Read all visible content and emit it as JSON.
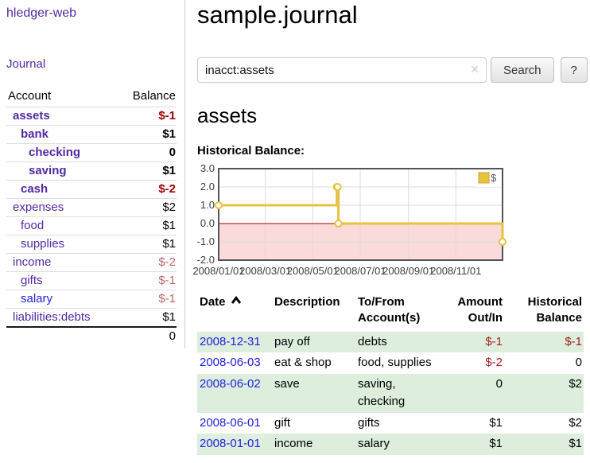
{
  "app": {
    "title": "hledger-web"
  },
  "sidebar": {
    "journal_label": "Journal",
    "accounts": {
      "account_header": "Account",
      "balance_header": "Balance",
      "rows": [
        {
          "name": "assets",
          "balance": "$-1",
          "depth": 0,
          "selected": true,
          "link": "purple",
          "tone": "neg"
        },
        {
          "name": "bank",
          "balance": "$1",
          "depth": 1,
          "selected": true,
          "link": "purple",
          "tone": "pos"
        },
        {
          "name": "checking",
          "balance": "0",
          "depth": 2,
          "selected": true,
          "link": "purple",
          "tone": "pos"
        },
        {
          "name": "saving",
          "balance": "$1",
          "depth": 2,
          "selected": true,
          "link": "purple",
          "tone": "pos"
        },
        {
          "name": "cash",
          "balance": "$-2",
          "depth": 1,
          "selected": true,
          "link": "purple",
          "tone": "neg"
        },
        {
          "name": "expenses",
          "balance": "$2",
          "depth": 0,
          "selected": false,
          "link": "purple",
          "tone": "pos"
        },
        {
          "name": "food",
          "balance": "$1",
          "depth": 1,
          "selected": false,
          "link": "purple",
          "tone": "pos"
        },
        {
          "name": "supplies",
          "balance": "$1",
          "depth": 1,
          "selected": false,
          "link": "purple",
          "tone": "pos"
        },
        {
          "name": "income",
          "balance": "$-2",
          "depth": 0,
          "selected": false,
          "link": "purple",
          "tone": "neg-muted"
        },
        {
          "name": "gifts",
          "balance": "$-1",
          "depth": 1,
          "selected": false,
          "link": "purple",
          "tone": "neg-muted"
        },
        {
          "name": "salary",
          "balance": "$-1",
          "depth": 1,
          "selected": false,
          "link": "blue",
          "tone": "neg-muted"
        },
        {
          "name": "liabilities:debts",
          "balance": "$1",
          "depth": 0,
          "selected": false,
          "link": "purple",
          "tone": "pos"
        }
      ],
      "total": "0"
    }
  },
  "main": {
    "title": "sample.journal",
    "search": {
      "value": "inacct:assets",
      "clear_glyph": "✕",
      "button_label": "Search",
      "help_label": "?"
    },
    "account_heading": "assets",
    "chart_label": "Historical Balance:"
  },
  "chart_data": {
    "type": "line",
    "step": true,
    "title": "Historical Balance",
    "series": [
      {
        "name": "$",
        "color": "#e8c33d",
        "points": [
          [
            "2008-01-01",
            1
          ],
          [
            "2008-06-01",
            2
          ],
          [
            "2008-06-02",
            2
          ],
          [
            "2008-06-03",
            0
          ],
          [
            "2008-12-31",
            -1
          ]
        ]
      }
    ],
    "ylim": [
      -2,
      3
    ],
    "xlim": [
      "2008-01-01",
      "2008-12-31"
    ],
    "yticks": [
      "3.0",
      "2.0",
      "1.0",
      "0.0",
      "-1.0",
      "-2.0"
    ],
    "xticks": [
      "2008/01/01",
      "2008/03/01",
      "2008/05/01",
      "2008/07/01",
      "2008/09/01",
      "2008/11/01"
    ],
    "grid": true,
    "legend_position": "top-right",
    "negative_region_color": "#fbdada",
    "zero_line_color": "#a40000",
    "border_color": "#545454",
    "gridline_color": "#dcdcdc",
    "tick_color": "#3d3d3d"
  },
  "transactions": {
    "headers": {
      "date": "Date",
      "sort": "asc",
      "description": "Description",
      "accounts": "To/From Account(s)",
      "amount": "Amount Out/In",
      "balance": "Historical Balance"
    },
    "rows": [
      {
        "date": "2008-12-31",
        "description": "pay off",
        "accounts": "debts",
        "amount": "$-1",
        "amount_negative": true,
        "balance": "$-1",
        "balance_negative": true
      },
      {
        "date": "2008-06-03",
        "description": "eat & shop",
        "accounts": "food, supplies",
        "amount": "$-2",
        "amount_negative": true,
        "balance": "0",
        "balance_negative": false
      },
      {
        "date": "2008-06-02",
        "description": "save",
        "accounts": "saving, checking",
        "amount": "0",
        "amount_negative": false,
        "balance": "$2",
        "balance_negative": false
      },
      {
        "date": "2008-06-01",
        "description": "gift",
        "accounts": "gifts",
        "amount": "$1",
        "amount_negative": false,
        "balance": "$2",
        "balance_negative": false
      },
      {
        "date": "2008-01-01",
        "description": "income",
        "accounts": "salary",
        "amount": "$1",
        "amount_negative": false,
        "balance": "$1",
        "balance_negative": false
      }
    ]
  }
}
